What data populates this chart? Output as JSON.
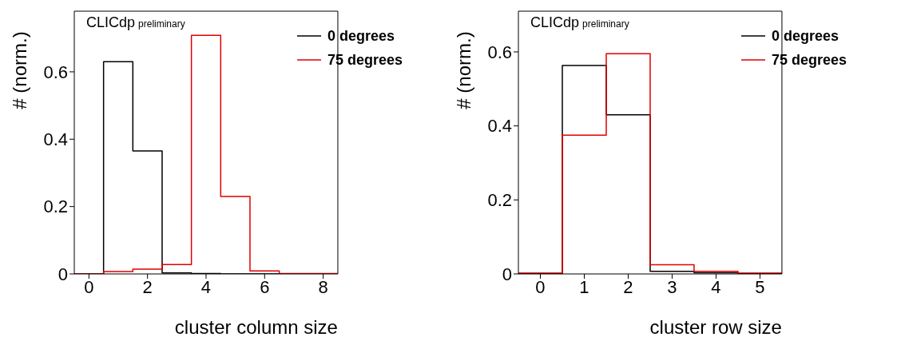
{
  "chart_data": [
    {
      "type": "histogram",
      "ylabel": "# (norm.)",
      "xlabel": "cluster column size",
      "annotations": [
        "CLICdp preliminary"
      ],
      "bins": [
        -0.5,
        0.5,
        1.5,
        2.5,
        3.5,
        4.5,
        5.5,
        6.5,
        7.5,
        8.5
      ],
      "series": [
        {
          "name": "0 degrees",
          "color": "#000000",
          "values": [
            0,
            0.63,
            0.365,
            0.003,
            0.001,
            0,
            0,
            0,
            0
          ]
        },
        {
          "name": "75 degrees",
          "color": "#e00000",
          "values": [
            0,
            0.007,
            0.014,
            0.028,
            0.708,
            0.23,
            0.009,
            0.001,
            0.001
          ]
        }
      ],
      "xlim": [
        -0.5,
        8.5
      ],
      "xticks": [
        0,
        2,
        4,
        6,
        8
      ],
      "ylim": [
        0,
        0.78
      ],
      "yticks": [
        0,
        0.2,
        0.4,
        0.6
      ],
      "legend": "top right",
      "grid": false
    },
    {
      "type": "histogram",
      "ylabel": "# (norm.)",
      "xlabel": "cluster row size",
      "annotations": [
        "CLICdp preliminary"
      ],
      "bins": [
        -0.5,
        0.5,
        1.5,
        2.5,
        3.5,
        4.5,
        5.5
      ],
      "series": [
        {
          "name": "0 degrees",
          "color": "#000000",
          "values": [
            0.001,
            0.563,
            0.43,
            0.007,
            0.003,
            0.001
          ]
        },
        {
          "name": "75 degrees",
          "color": "#e00000",
          "values": [
            0.002,
            0.375,
            0.595,
            0.025,
            0.007,
            0.002
          ]
        }
      ],
      "xlim": [
        -0.5,
        5.5
      ],
      "xticks": [
        0,
        1,
        2,
        3,
        4,
        5
      ],
      "ylim": [
        0,
        0.71
      ],
      "yticks": [
        0,
        0.2,
        0.4,
        0.6
      ],
      "legend": "top right",
      "grid": false
    }
  ]
}
